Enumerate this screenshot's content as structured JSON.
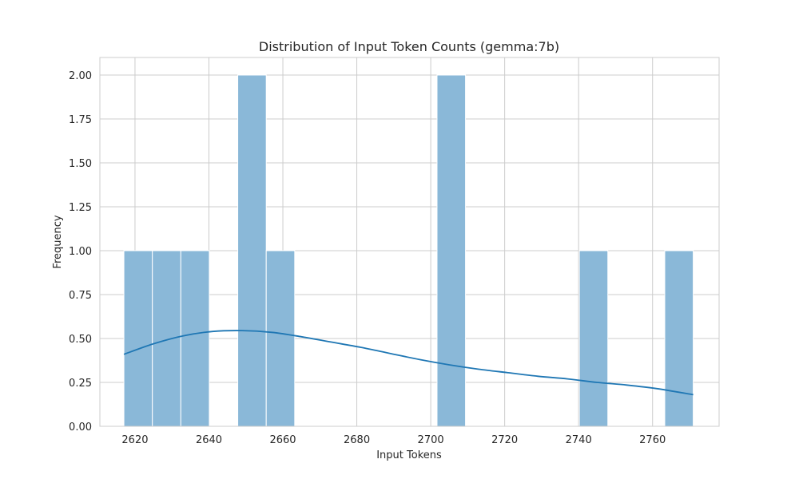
{
  "chart_data": {
    "type": "bar",
    "title": "Distribution of Input Token Counts (gemma:7b)",
    "xlabel": "Input Tokens",
    "ylabel": "Frequency",
    "xlim": [
      2610.5,
      2778.0
    ],
    "ylim": [
      0,
      2.1
    ],
    "grid": true,
    "bin_width": 7.7,
    "bins": [
      {
        "start": 2617.0,
        "end": 2624.7,
        "count": 1
      },
      {
        "start": 2624.7,
        "end": 2632.4,
        "count": 1
      },
      {
        "start": 2632.4,
        "end": 2640.1,
        "count": 1
      },
      {
        "start": 2647.8,
        "end": 2655.5,
        "count": 2
      },
      {
        "start": 2655.5,
        "end": 2663.2,
        "count": 1
      },
      {
        "start": 2701.7,
        "end": 2709.4,
        "count": 2
      },
      {
        "start": 2740.2,
        "end": 2747.9,
        "count": 1
      },
      {
        "start": 2763.3,
        "end": 2771.0,
        "count": 1
      }
    ],
    "kde": {
      "x": [
        2617,
        2625,
        2633,
        2641,
        2649,
        2657,
        2665,
        2673,
        2681,
        2689,
        2697,
        2705,
        2713,
        2721,
        2729,
        2737,
        2745,
        2753,
        2761,
        2771
      ],
      "y": [
        0.41,
        0.47,
        0.515,
        0.54,
        0.545,
        0.535,
        0.51,
        0.48,
        0.45,
        0.415,
        0.38,
        0.35,
        0.325,
        0.305,
        0.285,
        0.27,
        0.25,
        0.235,
        0.215,
        0.18
      ]
    },
    "x_ticks": [
      {
        "value": 2620,
        "label": "2620"
      },
      {
        "value": 2640,
        "label": "2640"
      },
      {
        "value": 2660,
        "label": "2660"
      },
      {
        "value": 2680,
        "label": "2680"
      },
      {
        "value": 2700,
        "label": "2700"
      },
      {
        "value": 2720,
        "label": "2720"
      },
      {
        "value": 2740,
        "label": "2740"
      },
      {
        "value": 2760,
        "label": "2760"
      }
    ],
    "y_ticks": [
      {
        "value": 0.0,
        "label": "0.00"
      },
      {
        "value": 0.25,
        "label": "0.25"
      },
      {
        "value": 0.5,
        "label": "0.50"
      },
      {
        "value": 0.75,
        "label": "0.75"
      },
      {
        "value": 1.0,
        "label": "1.00"
      },
      {
        "value": 1.25,
        "label": "1.25"
      },
      {
        "value": 1.5,
        "label": "1.50"
      },
      {
        "value": 1.75,
        "label": "1.75"
      },
      {
        "value": 2.0,
        "label": "2.00"
      }
    ],
    "colors": {
      "bar_fill": "#8ab8d8",
      "bar_edge": "#ffffff",
      "kde_line": "#1f77b4",
      "grid": "#cccccc",
      "spine": "#cccccc",
      "text": "#262626"
    }
  }
}
